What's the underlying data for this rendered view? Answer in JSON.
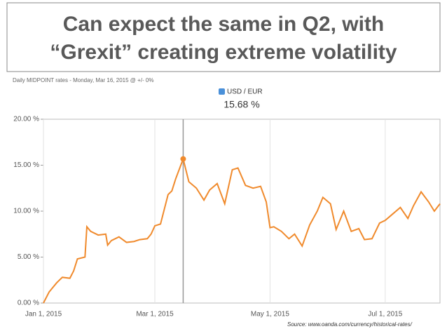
{
  "chart_data": {
    "type": "line",
    "title_lines": [
      "Can expect the same in Q2, with",
      "“Grexit” creating extreme volatility"
    ],
    "subtitle": "Daily MIDPOINT rates - Monday, Mar 16, 2015 @ +/- 0%",
    "source": "Source: www.oanda.com/currency/historical-rates/",
    "readout": {
      "x": "2015-03-16",
      "value": 15.68,
      "label": "15.68 %"
    },
    "x": [
      "2015-01-01",
      "2015-01-04",
      "2015-01-08",
      "2015-01-11",
      "2015-01-15",
      "2015-01-17",
      "2015-01-19",
      "2015-01-23",
      "2015-01-24",
      "2015-01-26",
      "2015-01-30",
      "2015-02-03",
      "2015-02-04",
      "2015-02-06",
      "2015-02-10",
      "2015-02-14",
      "2015-02-18",
      "2015-02-21",
      "2015-02-25",
      "2015-02-27",
      "2015-03-01",
      "2015-03-04",
      "2015-03-08",
      "2015-03-10",
      "2015-03-12",
      "2015-03-16",
      "2015-03-19",
      "2015-03-23",
      "2015-03-27",
      "2015-03-30",
      "2015-04-03",
      "2015-04-07",
      "2015-04-11",
      "2015-04-14",
      "2015-04-18",
      "2015-04-22",
      "2015-04-26",
      "2015-04-29",
      "2015-05-01",
      "2015-05-03",
      "2015-05-07",
      "2015-05-11",
      "2015-05-14",
      "2015-05-18",
      "2015-05-22",
      "2015-05-26",
      "2015-05-29",
      "2015-06-02",
      "2015-06-05",
      "2015-06-09",
      "2015-06-13",
      "2015-06-17",
      "2015-06-20",
      "2015-06-24",
      "2015-06-28",
      "2015-07-01",
      "2015-07-05",
      "2015-07-09",
      "2015-07-13",
      "2015-07-16",
      "2015-07-20",
      "2015-07-24",
      "2015-07-27",
      "2015-07-30"
    ],
    "series": [
      {
        "name": "USD / EUR",
        "color": "#f08a2c",
        "values": [
          0,
          1.2,
          2.2,
          2.8,
          2.7,
          3.5,
          4.8,
          5.0,
          8.3,
          7.8,
          7.4,
          7.5,
          6.3,
          6.8,
          7.2,
          6.6,
          6.7,
          6.9,
          7.0,
          7.5,
          8.4,
          8.6,
          11.8,
          12.2,
          13.5,
          15.68,
          13.2,
          12.5,
          11.2,
          12.3,
          13.0,
          10.8,
          14.5,
          14.7,
          12.8,
          12.5,
          12.7,
          11.0,
          8.2,
          8.3,
          7.8,
          7.0,
          7.5,
          6.2,
          8.5,
          10.0,
          11.5,
          10.8,
          8.0,
          10.0,
          7.8,
          8.1,
          6.9,
          7.0,
          8.7,
          9.0,
          9.7,
          10.4,
          9.2,
          10.6,
          12.1,
          11.0,
          10.0,
          10.8
        ]
      }
    ],
    "xlim": [
      "2015-01-01",
      "2015-07-30"
    ],
    "xticks": [
      {
        "value": "2015-01-01",
        "label": "Jan 1, 2015"
      },
      {
        "value": "2015-03-01",
        "label": "Mar 1, 2015"
      },
      {
        "value": "2015-05-01",
        "label": "May 1, 2015"
      },
      {
        "value": "2015-07-01",
        "label": "Jul 1, 2015"
      }
    ],
    "ylim": [
      0,
      20
    ],
    "yticks": [
      {
        "value": 0,
        "label": "0.00 %"
      },
      {
        "value": 5,
        "label": "5.00 %"
      },
      {
        "value": 10,
        "label": "10.00 %"
      },
      {
        "value": 15,
        "label": "15.00 %"
      },
      {
        "value": 20,
        "label": "20.00 %"
      }
    ],
    "grid": true
  }
}
